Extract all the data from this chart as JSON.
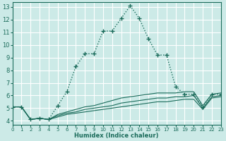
{
  "xlabel": "Humidex (Indice chaleur)",
  "xlim": [
    0,
    23
  ],
  "ylim": [
    3.7,
    13.4
  ],
  "yticks": [
    4,
    5,
    6,
    7,
    8,
    9,
    10,
    11,
    12,
    13
  ],
  "xticks": [
    0,
    1,
    2,
    3,
    4,
    5,
    6,
    7,
    8,
    9,
    10,
    11,
    12,
    13,
    14,
    15,
    16,
    17,
    18,
    19,
    20,
    21,
    22,
    23
  ],
  "bg_color": "#cceae7",
  "grid_color": "#ffffff",
  "line_color": "#1a6b5a",
  "lines": [
    {
      "x": [
        0,
        1,
        2,
        3,
        4,
        5,
        6,
        7,
        8,
        9,
        10,
        11,
        12,
        13,
        14,
        15,
        16,
        17,
        18,
        19,
        20,
        21,
        22,
        23
      ],
      "y": [
        5.1,
        5.1,
        4.1,
        4.2,
        4.1,
        5.2,
        6.3,
        8.3,
        9.3,
        9.3,
        11.1,
        11.1,
        12.1,
        13.1,
        12.1,
        10.5,
        9.2,
        9.2,
        6.7,
        6.1,
        6.1,
        5.1,
        6.1,
        6.1
      ],
      "linestyle": ":",
      "linewidth": 1.0,
      "marker": "+",
      "markersize": 4.0,
      "markeredgewidth": 1.0,
      "zorder": 4
    },
    {
      "x": [
        0,
        1,
        2,
        3,
        4,
        5,
        6,
        7,
        8,
        9,
        10,
        11,
        12,
        13,
        14,
        15,
        16,
        17,
        18,
        19,
        20,
        21,
        22,
        23
      ],
      "y": [
        5.1,
        5.1,
        4.1,
        4.2,
        4.1,
        4.5,
        4.7,
        4.9,
        5.1,
        5.2,
        5.4,
        5.6,
        5.8,
        5.9,
        6.0,
        6.1,
        6.2,
        6.2,
        6.2,
        6.3,
        6.3,
        5.2,
        6.1,
        6.2
      ],
      "linestyle": "-",
      "linewidth": 0.8,
      "marker": null,
      "markersize": 0,
      "markeredgewidth": 0,
      "zorder": 3
    },
    {
      "x": [
        0,
        1,
        2,
        3,
        4,
        5,
        6,
        7,
        8,
        9,
        10,
        11,
        12,
        13,
        14,
        15,
        16,
        17,
        18,
        19,
        20,
        21,
        22,
        23
      ],
      "y": [
        5.1,
        5.1,
        4.1,
        4.2,
        4.1,
        4.4,
        4.6,
        4.7,
        4.9,
        5.0,
        5.1,
        5.2,
        5.4,
        5.5,
        5.6,
        5.7,
        5.8,
        5.8,
        5.9,
        5.9,
        6.0,
        5.0,
        5.9,
        6.0
      ],
      "linestyle": "-",
      "linewidth": 0.8,
      "marker": null,
      "markersize": 0,
      "markeredgewidth": 0,
      "zorder": 3
    },
    {
      "x": [
        0,
        1,
        2,
        3,
        4,
        5,
        6,
        7,
        8,
        9,
        10,
        11,
        12,
        13,
        14,
        15,
        16,
        17,
        18,
        19,
        20,
        21,
        22,
        23
      ],
      "y": [
        5.1,
        5.1,
        4.1,
        4.2,
        4.1,
        4.3,
        4.5,
        4.6,
        4.7,
        4.8,
        4.9,
        5.0,
        5.1,
        5.2,
        5.3,
        5.4,
        5.5,
        5.5,
        5.6,
        5.7,
        5.7,
        4.9,
        5.8,
        5.9
      ],
      "linestyle": "-",
      "linewidth": 0.8,
      "marker": null,
      "markersize": 0,
      "markeredgewidth": 0,
      "zorder": 3
    }
  ]
}
